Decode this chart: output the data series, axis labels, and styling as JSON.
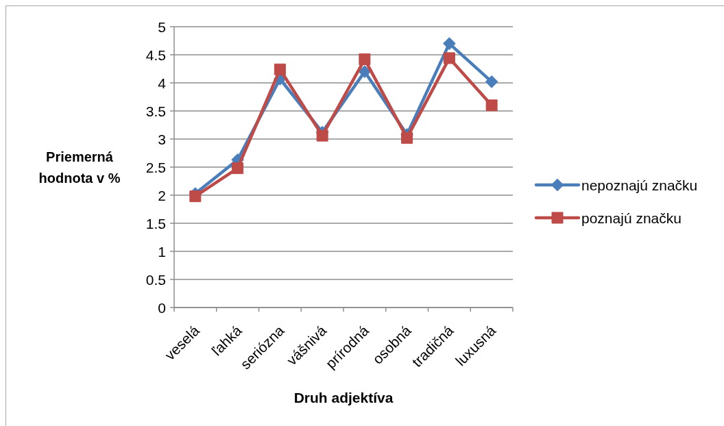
{
  "chart_data": {
    "type": "line",
    "xlabel": "Druh adjektíva",
    "ylabel": "Priemerná hodnota v %",
    "categories": [
      "veselá",
      "ľahká",
      "seriózna",
      "vášnivá",
      "prírodná",
      "osobná",
      "tradičná",
      "luxusná"
    ],
    "series": [
      {
        "name": "nepoznajú značku",
        "color": "#4a7ebb",
        "marker": "diamond",
        "values": [
          2.03,
          2.63,
          4.07,
          3.12,
          4.2,
          3.08,
          4.7,
          4.02
        ]
      },
      {
        "name": "poznajú značku",
        "color": "#be4b48",
        "marker": "square",
        "values": [
          1.98,
          2.48,
          4.24,
          3.06,
          4.42,
          3.02,
          4.44,
          3.6
        ]
      }
    ],
    "ylim": [
      0,
      5
    ],
    "yticks": [
      0,
      0.5,
      1,
      1.5,
      2,
      2.5,
      3,
      3.5,
      4,
      4.5,
      5
    ],
    "grid": "y",
    "legend": "right"
  }
}
